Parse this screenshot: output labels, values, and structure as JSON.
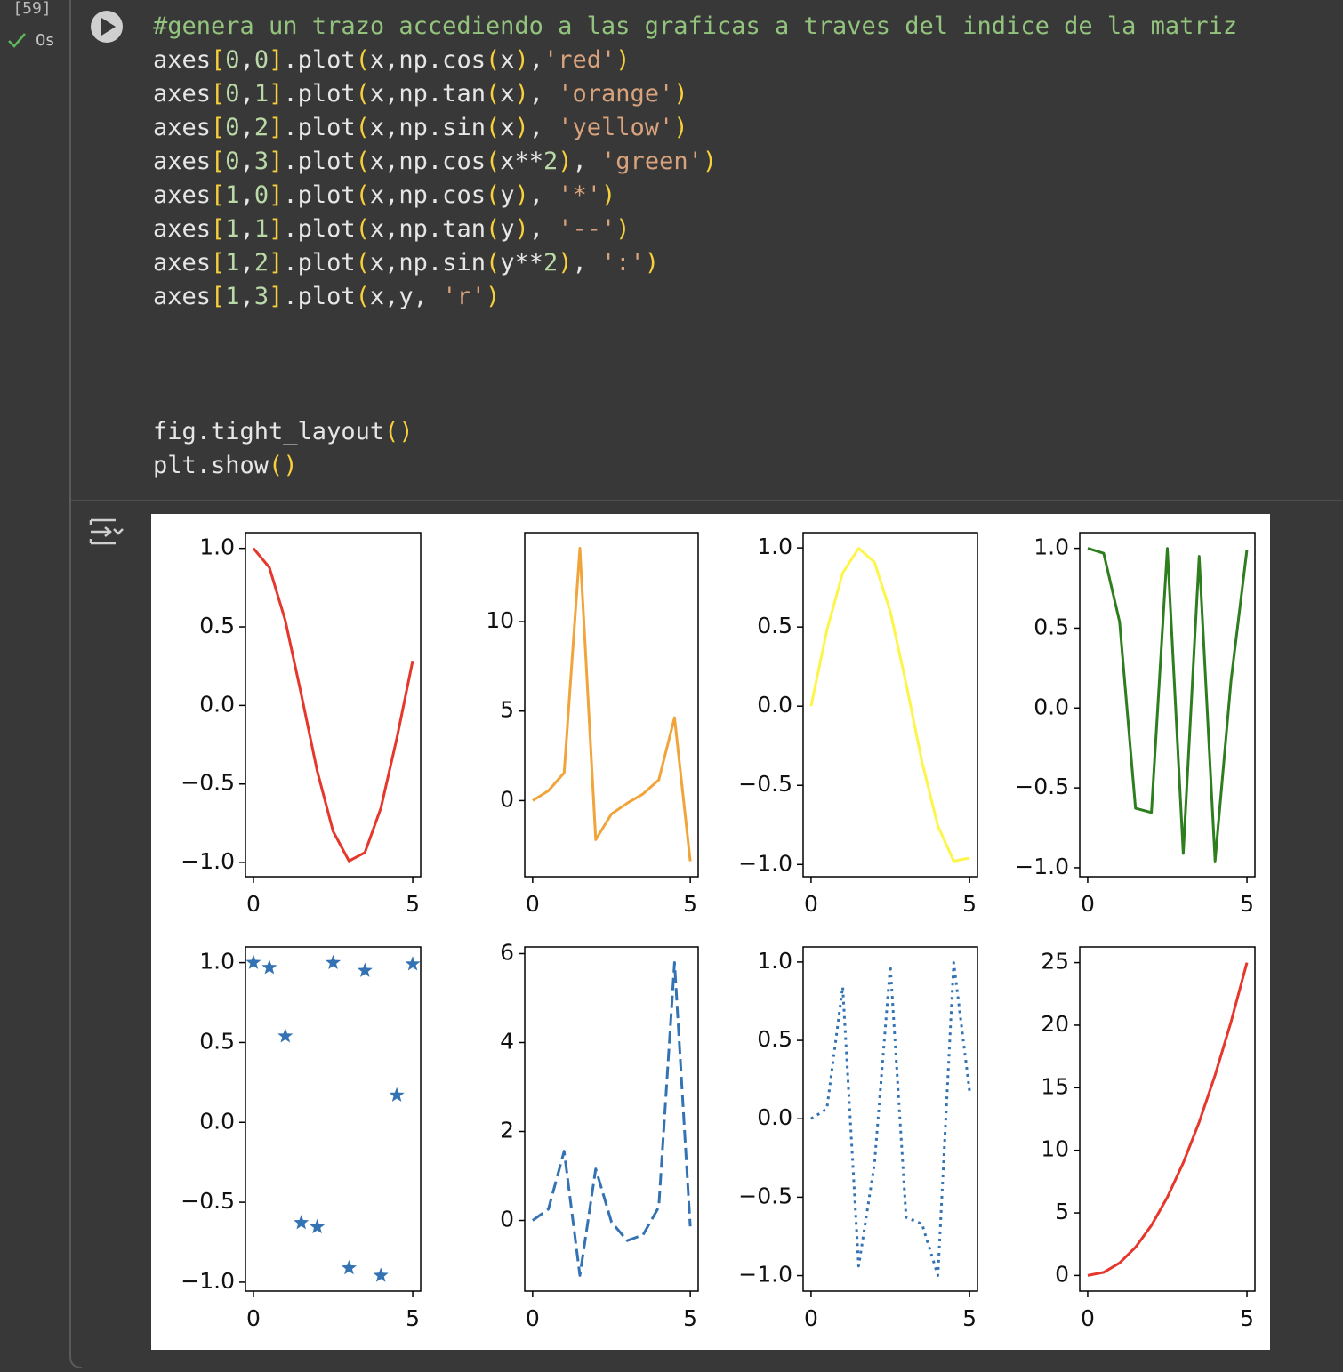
{
  "cell": {
    "execution_count": "[59]",
    "status": "0s"
  },
  "code": {
    "lines": [
      "#genera un trazo accediendo a las graficas a traves del indice de la matriz",
      "axes[0,0].plot(x,np.cos(x),'red')",
      "axes[0,1].plot(x,np.tan(x), 'orange')",
      "axes[0,2].plot(x,np.sin(x), 'yellow')",
      "axes[0,3].plot(x,np.cos(x**2), 'green')",
      "axes[1,0].plot(x,np.cos(y), '*')",
      "axes[1,1].plot(x,np.tan(y), '--')",
      "axes[1,2].plot(x,np.sin(y**2), ':')",
      "axes[1,3].plot(x,y, 'r')"
    ],
    "tail": [
      "fig.tight_layout()",
      "plt.show()"
    ]
  },
  "chart_data": [
    {
      "type": "line",
      "color": "#e5372b",
      "linestyle": "solid",
      "x": [
        0,
        0.5,
        1,
        1.5,
        2,
        2.5,
        3,
        3.5,
        4,
        4.5,
        5
      ],
      "values": [
        1,
        0.878,
        0.54,
        0.071,
        -0.416,
        -0.801,
        -0.99,
        -0.936,
        -0.654,
        -0.211,
        0.284
      ],
      "xlim": [
        -0.25,
        5.25
      ],
      "ylim": [
        -1.09,
        1.1
      ],
      "xticks": [
        0,
        5
      ],
      "yticks": [
        {
          "value": -1,
          "label": "−1.0"
        },
        {
          "value": -0.5,
          "label": "−0.5"
        },
        {
          "value": 0,
          "label": "0.0"
        },
        0.5,
        {
          "value": 1,
          "label": "1.0"
        }
      ]
    },
    {
      "type": "line",
      "color": "#f0a43a",
      "linestyle": "solid",
      "x": [
        0,
        0.5,
        1,
        1.5,
        2,
        2.5,
        3,
        3.5,
        4,
        4.5,
        5
      ],
      "values": [
        0,
        0.546,
        1.557,
        14.101,
        -2.185,
        -0.747,
        -0.143,
        0.375,
        1.158,
        4.637,
        -3.381
      ],
      "xlim": [
        -0.25,
        5.25
      ],
      "ylim": [
        -4.25,
        14.97
      ],
      "xticks": [
        0,
        5
      ],
      "yticks": [
        0,
        5,
        10
      ]
    },
    {
      "type": "line",
      "color": "#fdf54a",
      "linestyle": "solid",
      "x": [
        0,
        0.5,
        1,
        1.5,
        2,
        2.5,
        3,
        3.5,
        4,
        4.5,
        5
      ],
      "values": [
        0,
        0.479,
        0.841,
        0.997,
        0.909,
        0.598,
        0.141,
        -0.351,
        -0.757,
        -0.978,
        -0.959
      ],
      "xlim": [
        -0.25,
        5.25
      ],
      "ylim": [
        -1.077,
        1.096
      ],
      "xticks": [
        0,
        5
      ],
      "yticks": [
        {
          "value": -1,
          "label": "−1.0"
        },
        {
          "value": -0.5,
          "label": "−0.5"
        },
        {
          "value": 0,
          "label": "0.0"
        },
        0.5,
        {
          "value": 1,
          "label": "1.0"
        }
      ]
    },
    {
      "type": "line",
      "color": "#2e7d1e",
      "linestyle": "solid",
      "x": [
        0,
        0.5,
        1,
        1.5,
        2,
        2.5,
        3,
        3.5,
        4,
        4.5,
        5
      ],
      "values": [
        1,
        0.969,
        0.54,
        -0.628,
        -0.654,
        0.9995,
        -0.911,
        0.95,
        -0.958,
        0.17,
        0.991
      ],
      "xlim": [
        -0.25,
        5.25
      ],
      "ylim": [
        -1.056,
        1.098
      ],
      "xticks": [
        0,
        5
      ],
      "yticks": [
        {
          "value": -1,
          "label": "−1.0"
        },
        {
          "value": -0.5,
          "label": "−0.5"
        },
        {
          "value": 0,
          "label": "0.0"
        },
        0.5,
        {
          "value": 1,
          "label": "1.0"
        }
      ]
    },
    {
      "type": "scatter",
      "color": "#3473b3",
      "marker": "star",
      "x": [
        0,
        0.5,
        1,
        1.5,
        2,
        2.5,
        3,
        3.5,
        4,
        4.5,
        5
      ],
      "values": [
        1,
        0.969,
        0.54,
        -0.628,
        -0.654,
        0.9995,
        -0.911,
        0.95,
        -0.958,
        0.17,
        0.991
      ],
      "xlim": [
        -0.25,
        5.25
      ],
      "ylim": [
        -1.056,
        1.098
      ],
      "xticks": [
        0,
        5
      ],
      "yticks": [
        {
          "value": -1,
          "label": "−1.0"
        },
        {
          "value": -0.5,
          "label": "−0.5"
        },
        {
          "value": 0,
          "label": "0.0"
        },
        0.5,
        {
          "value": 1,
          "label": "1.0"
        }
      ]
    },
    {
      "type": "line",
      "color": "#3473b3",
      "linestyle": "dashed",
      "x": [
        0,
        0.5,
        1,
        1.5,
        2,
        2.5,
        3,
        3.5,
        4,
        4.5,
        5
      ],
      "values": [
        0,
        0.255,
        1.557,
        -1.238,
        1.158,
        -0.033,
        -0.453,
        -0.327,
        0.301,
        5.8,
        -0.134
      ],
      "xlim": [
        -0.25,
        5.25
      ],
      "ylim": [
        -1.59,
        6.15
      ],
      "xticks": [
        0,
        5
      ],
      "yticks": [
        0,
        2,
        4,
        6
      ]
    },
    {
      "type": "line",
      "color": "#3473b3",
      "linestyle": "dotted",
      "x": [
        0,
        0.5,
        1,
        1.5,
        2,
        2.5,
        3,
        3.5,
        4,
        4.5,
        5
      ],
      "values": [
        0,
        0.0625,
        0.841,
        -0.939,
        -0.288,
        0.978,
        -0.629,
        -0.67,
        -0.999,
        0.996,
        0.176
      ],
      "xlim": [
        -0.25,
        5.25
      ],
      "ylim": [
        -1.099,
        1.096
      ],
      "xticks": [
        0,
        5
      ],
      "yticks": [
        {
          "value": -1,
          "label": "−1.0"
        },
        {
          "value": -0.5,
          "label": "−0.5"
        },
        {
          "value": 0,
          "label": "0.0"
        },
        0.5,
        {
          "value": 1,
          "label": "1.0"
        }
      ]
    },
    {
      "type": "line",
      "color": "#e5372b",
      "linestyle": "solid",
      "x": [
        0,
        0.5,
        1,
        1.5,
        2,
        2.5,
        3,
        3.5,
        4,
        4.5,
        5
      ],
      "values": [
        0,
        0.25,
        1,
        2.25,
        4,
        6.25,
        9,
        12.25,
        16,
        20.25,
        25
      ],
      "xlim": [
        -0.25,
        5.25
      ],
      "ylim": [
        -1.25,
        26.25
      ],
      "xticks": [
        0,
        5
      ],
      "yticks": [
        0,
        5,
        10,
        15,
        20,
        25
      ]
    }
  ]
}
